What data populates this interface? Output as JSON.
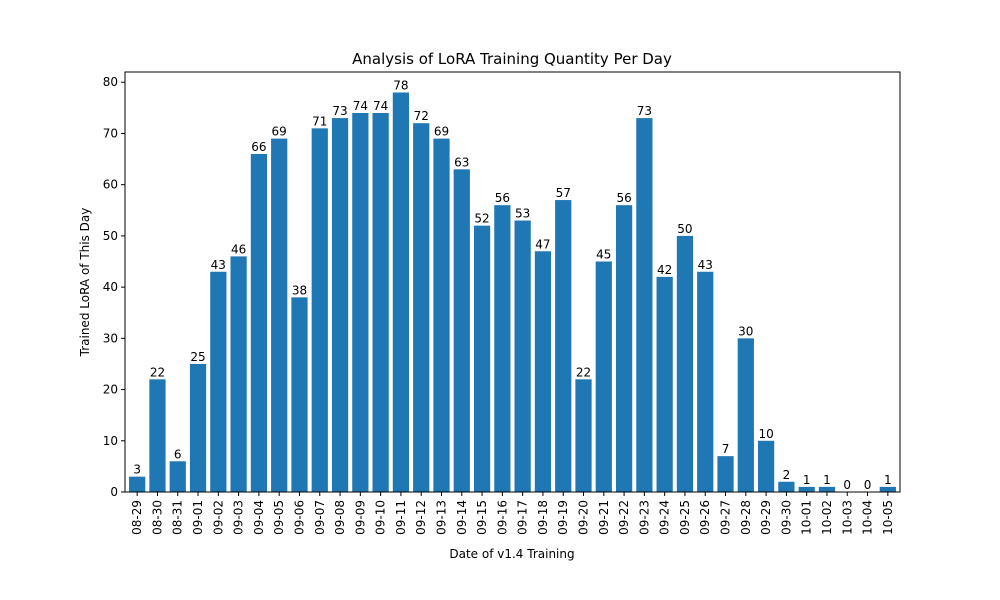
{
  "chart_data": {
    "type": "bar",
    "title": "Analysis of LoRA Training Quantity Per Day",
    "xlabel": "Date of v1.4 Training",
    "ylabel": "Trained LoRA of This Day",
    "ylim": [
      0,
      82
    ],
    "yticks": [
      "0",
      "10",
      "20",
      "30",
      "40",
      "50",
      "60",
      "70",
      "80"
    ],
    "grid": false,
    "bar_color": "#1f77b4",
    "categories": [
      "08-29",
      "08-30",
      "08-31",
      "09-01",
      "09-02",
      "09-03",
      "09-04",
      "09-05",
      "09-06",
      "09-07",
      "09-08",
      "09-09",
      "09-10",
      "09-11",
      "09-12",
      "09-13",
      "09-14",
      "09-15",
      "09-16",
      "09-17",
      "09-18",
      "09-19",
      "09-20",
      "09-21",
      "09-22",
      "09-23",
      "09-24",
      "09-25",
      "09-26",
      "09-27",
      "09-28",
      "09-29",
      "09-30",
      "10-01",
      "10-02",
      "10-03",
      "10-04",
      "10-05"
    ],
    "values": [
      3,
      22,
      6,
      25,
      43,
      46,
      66,
      69,
      38,
      71,
      73,
      74,
      74,
      78,
      72,
      69,
      63,
      52,
      56,
      53,
      47,
      57,
      22,
      45,
      56,
      73,
      42,
      50,
      43,
      7,
      30,
      10,
      2,
      1,
      1,
      0,
      0,
      1
    ]
  }
}
